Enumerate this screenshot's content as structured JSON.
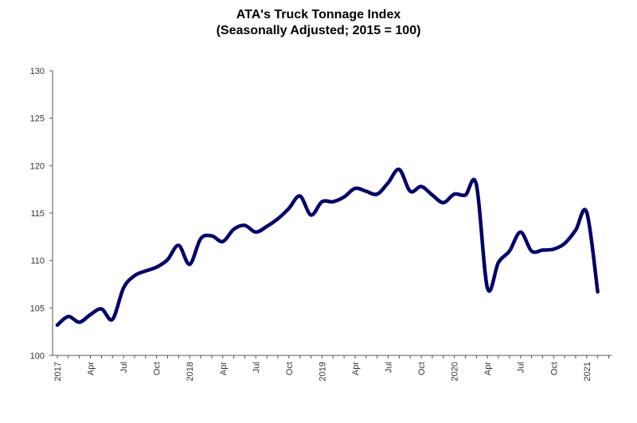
{
  "chart_data": {
    "type": "line",
    "title": "ATA's Truck Tonnage Index",
    "subtitle": "(Seasonally Adjusted; 2015 = 100)",
    "xlabel": "",
    "ylabel": "",
    "ylim": [
      100,
      130
    ],
    "yticks": [
      100,
      105,
      110,
      115,
      120,
      125,
      130
    ],
    "grid": false,
    "legend": "none",
    "line_color": "#000066",
    "x_start": "2017-01",
    "x_end": "2021-03",
    "xtick_labels": [
      "2017",
      "Apr",
      "Jul",
      "Oct",
      "2018",
      "Apr",
      "Jul",
      "Oct",
      "2019",
      "Apr",
      "Jul",
      "Oct",
      "2020",
      "Apr",
      "Jul",
      "Oct",
      "2021"
    ],
    "x": [
      "2017-01",
      "2017-02",
      "2017-03",
      "2017-04",
      "2017-05",
      "2017-06",
      "2017-07",
      "2017-08",
      "2017-09",
      "2017-10",
      "2017-11",
      "2017-12",
      "2018-01",
      "2018-02",
      "2018-03",
      "2018-04",
      "2018-05",
      "2018-06",
      "2018-07",
      "2018-08",
      "2018-09",
      "2018-10",
      "2018-11",
      "2018-12",
      "2019-01",
      "2019-02",
      "2019-03",
      "2019-04",
      "2019-05",
      "2019-06",
      "2019-07",
      "2019-08",
      "2019-09",
      "2019-10",
      "2019-11",
      "2019-12",
      "2020-01",
      "2020-02",
      "2020-03",
      "2020-04",
      "2020-05",
      "2020-06",
      "2020-07",
      "2020-08",
      "2020-09",
      "2020-10",
      "2020-11",
      "2020-12",
      "2021-01",
      "2021-02"
    ],
    "values": [
      103.2,
      104.1,
      103.5,
      104.3,
      104.9,
      103.8,
      107.1,
      108.4,
      108.9,
      109.3,
      110.1,
      111.6,
      109.6,
      112.3,
      112.6,
      112.0,
      113.3,
      113.7,
      113.0,
      113.6,
      114.4,
      115.5,
      116.8,
      114.8,
      116.2,
      116.2,
      116.7,
      117.6,
      117.3,
      117.0,
      118.2,
      119.6,
      117.3,
      117.8,
      116.9,
      116.1,
      117.0,
      116.9,
      118.0,
      107.1,
      109.8,
      111.0,
      113.0,
      111.0,
      111.1,
      111.2,
      111.8,
      113.2,
      115.1,
      106.7
    ]
  }
}
